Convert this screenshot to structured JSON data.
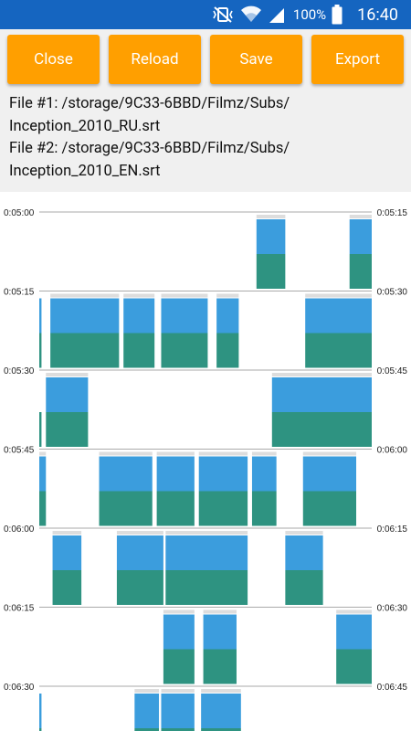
{
  "status_bar": {
    "battery": "100%",
    "time": "16:40",
    "icons": [
      "mute-vibrate-icon",
      "wifi-icon",
      "signal-icon",
      "battery-icon"
    ]
  },
  "toolbar": {
    "close_label": "Close",
    "reload_label": "Reload",
    "save_label": "Save",
    "export_label": "Export"
  },
  "files": {
    "file1_line1": "File #1: /storage/9C33-6BBD/Filmz/Subs/",
    "file1_line2": "Inception_2010_RU.srt",
    "file2_line1": "File #2: /storage/9C33-6BBD/Filmz/Subs/",
    "file2_line2": "Inception_2010_EN.srt"
  },
  "colors": {
    "accent": "#ff9f00",
    "statusbar": "#1565c0",
    "subtitle_file1": "#3b9ddd",
    "subtitle_file2": "#2e9381",
    "track_gray": "#dddddd"
  },
  "timeline": {
    "rows": [
      {
        "start": "0:05:00",
        "end": "0:05:15",
        "top": [
          [
            9.8,
            11.1
          ],
          [
            14.0,
            15.0
          ]
        ],
        "bottom": [
          [
            9.8,
            11.1
          ],
          [
            14.0,
            15.0
          ]
        ],
        "gray": [
          [
            9.8,
            11.1
          ],
          [
            14.0,
            15.0
          ]
        ]
      },
      {
        "start": "0:05:15",
        "end": "0:05:30",
        "top": [
          [
            0,
            0.1
          ],
          [
            0.5,
            3.6
          ],
          [
            3.8,
            5.2
          ],
          [
            5.5,
            7.6
          ],
          [
            8.0,
            9.0
          ],
          [
            12.0,
            15.0
          ]
        ],
        "bottom": [
          [
            0,
            0.1
          ],
          [
            0.5,
            3.6
          ],
          [
            3.8,
            5.2
          ],
          [
            5.5,
            7.6
          ],
          [
            8.0,
            9.0
          ],
          [
            12.0,
            15.0
          ]
        ],
        "gray": [
          [
            0.5,
            3.6
          ],
          [
            3.8,
            5.2
          ],
          [
            5.5,
            7.6
          ],
          [
            8.0,
            9.0
          ],
          [
            12.0,
            15.0
          ]
        ]
      },
      {
        "start": "0:05:30",
        "end": "0:05:45",
        "top": [
          [
            0.3,
            2.2
          ],
          [
            10.5,
            15.0
          ]
        ],
        "bottom": [
          [
            0,
            0.1
          ],
          [
            0.3,
            2.2
          ],
          [
            10.5,
            15.0
          ]
        ],
        "gray": [
          [
            0.3,
            2.2
          ],
          [
            10.5,
            15.0
          ]
        ]
      },
      {
        "start": "0:05:45",
        "end": "0:06:00",
        "top": [
          [
            0,
            0.3
          ],
          [
            2.7,
            5.1
          ],
          [
            5.3,
            7.0
          ],
          [
            7.2,
            9.4
          ],
          [
            9.6,
            10.7
          ],
          [
            11.9,
            14.3
          ]
        ],
        "bottom": [
          [
            0,
            0.3
          ],
          [
            2.7,
            5.1
          ],
          [
            5.3,
            7.0
          ],
          [
            7.2,
            9.4
          ],
          [
            9.6,
            10.7
          ],
          [
            11.9,
            14.3
          ]
        ],
        "gray": [
          [
            0,
            0.3
          ],
          [
            2.7,
            5.1
          ],
          [
            5.3,
            7.0
          ],
          [
            7.2,
            9.4
          ],
          [
            9.6,
            10.7
          ],
          [
            11.9,
            14.3
          ]
        ]
      },
      {
        "start": "0:06:00",
        "end": "0:06:15",
        "top": [
          [
            0.6,
            1.9
          ],
          [
            3.5,
            5.6
          ],
          [
            5.7,
            9.4
          ],
          [
            11.1,
            12.8
          ]
        ],
        "bottom": [
          [
            0.6,
            1.9
          ],
          [
            3.5,
            5.6
          ],
          [
            5.7,
            9.4
          ],
          [
            11.1,
            12.8
          ]
        ],
        "gray": [
          [
            0.6,
            1.9
          ],
          [
            3.5,
            5.6
          ],
          [
            5.7,
            9.4
          ],
          [
            11.1,
            12.8
          ]
        ]
      },
      {
        "start": "0:06:15",
        "end": "0:06:30",
        "top": [
          [
            5.6,
            7.0
          ],
          [
            7.4,
            8.9
          ],
          [
            13.4,
            15.0
          ]
        ],
        "bottom": [
          [
            5.6,
            7.0
          ],
          [
            7.4,
            8.9
          ],
          [
            13.4,
            15.0
          ]
        ],
        "gray": [
          [
            5.6,
            7.0
          ],
          [
            7.4,
            8.9
          ],
          [
            13.4,
            15.0
          ]
        ]
      },
      {
        "start": "0:06:30",
        "end": "0:06:45",
        "top": [
          [
            0,
            0.1
          ],
          [
            4.3,
            5.4
          ],
          [
            5.5,
            7.0
          ],
          [
            7.3,
            9.1
          ]
        ],
        "bottom": [
          [
            0,
            0.1
          ],
          [
            4.3,
            5.4
          ],
          [
            5.5,
            7.0
          ],
          [
            7.3,
            9.1
          ]
        ],
        "gray": [
          [
            4.3,
            5.4
          ],
          [
            5.5,
            7.0
          ],
          [
            7.3,
            9.1
          ]
        ]
      }
    ]
  }
}
